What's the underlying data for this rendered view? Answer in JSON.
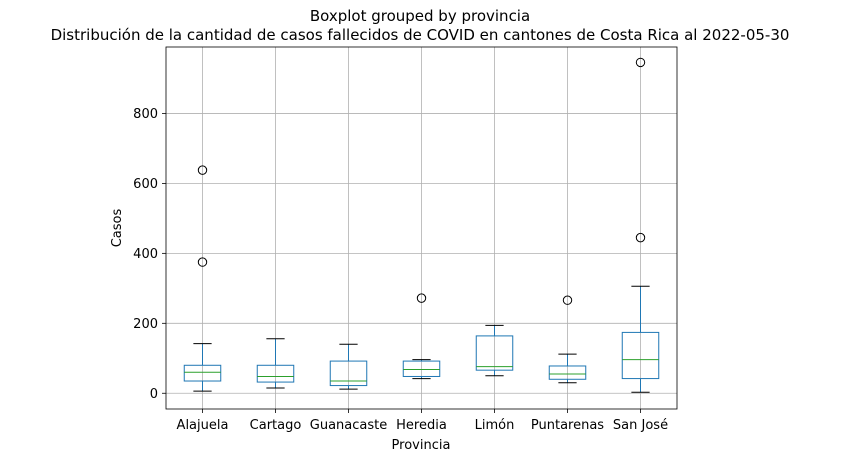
{
  "chart_data": {
    "type": "boxplot",
    "title": "Boxplot grouped by provincia",
    "subtitle": "Distribución de la cantidad de casos fallecidos de COVID en cantones de Costa Rica al 2022-05-30",
    "xlabel": "Provincia",
    "ylabel": "Casos",
    "ylim": [
      -45,
      990
    ],
    "yticks": [
      0,
      200,
      400,
      600,
      800
    ],
    "grid": true,
    "colors": {
      "box": "#1f77b4",
      "median": "#2ca02c",
      "whisker": "#1f77b4",
      "cap": "#000000",
      "flier": "#000000",
      "grid": "#b0b0b0"
    },
    "categories": [
      "Alajuela",
      "Cartago",
      "Guanacaste",
      "Heredia",
      "Limón",
      "Puntarenas",
      "San José"
    ],
    "boxes": [
      {
        "name": "Alajuela",
        "whislo": 6,
        "q1": 35,
        "med": 60,
        "q3": 80,
        "whishi": 142,
        "fliers": [
          375,
          638
        ]
      },
      {
        "name": "Cartago",
        "whislo": 15,
        "q1": 32,
        "med": 48,
        "q3": 80,
        "whishi": 156,
        "fliers": []
      },
      {
        "name": "Guanacaste",
        "whislo": 12,
        "q1": 22,
        "med": 35,
        "q3": 92,
        "whishi": 140,
        "fliers": []
      },
      {
        "name": "Heredia",
        "whislo": 42,
        "q1": 48,
        "med": 68,
        "q3": 92,
        "whishi": 96,
        "fliers": [
          272
        ]
      },
      {
        "name": "Limón",
        "whislo": 50,
        "q1": 66,
        "med": 76,
        "q3": 164,
        "whishi": 194,
        "fliers": []
      },
      {
        "name": "Puntarenas",
        "whislo": 30,
        "q1": 40,
        "med": 55,
        "q3": 78,
        "whishi": 112,
        "fliers": [
          266
        ]
      },
      {
        "name": "San José",
        "whislo": 3,
        "q1": 42,
        "med": 96,
        "q3": 174,
        "whishi": 306,
        "fliers": [
          445,
          946
        ]
      }
    ]
  }
}
